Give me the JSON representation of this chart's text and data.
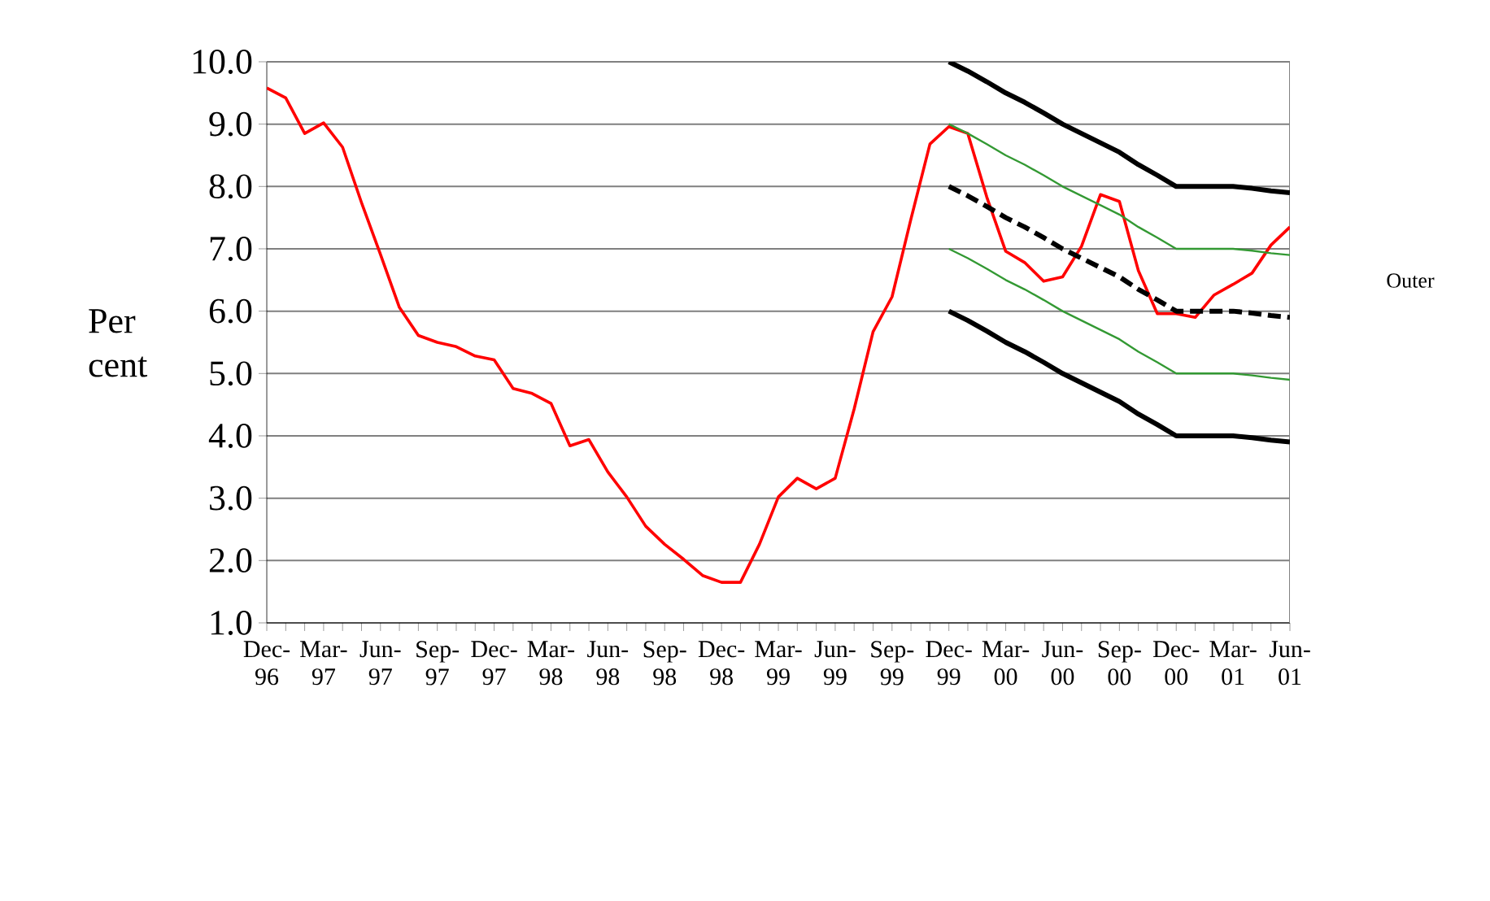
{
  "chart_data": {
    "type": "line",
    "ylabel": "Per cent",
    "categories": [
      "Dec-96",
      null,
      null,
      "Mar-97",
      null,
      null,
      "Jun-97",
      null,
      null,
      "Sep-97",
      null,
      null,
      "Dec-97",
      null,
      null,
      "Mar-98",
      null,
      null,
      "Jun-98",
      null,
      null,
      "Sep-98",
      null,
      null,
      "Dec-98",
      null,
      null,
      "Mar-99",
      null,
      null,
      "Jun-99",
      null,
      null,
      "Sep-99",
      null,
      null,
      "Dec-99",
      null,
      null,
      "Mar-00",
      null,
      null,
      "Jun-00",
      null,
      null,
      "Sep-00",
      null,
      null,
      "Dec-00",
      null,
      null,
      "Mar-01",
      null,
      null,
      "Jun-01"
    ],
    "series": [
      {
        "color": "#ff0000",
        "line_style": "solid",
        "values": [
          9.58,
          9.42,
          8.85,
          9.02,
          8.63,
          7.74,
          6.91,
          6.06,
          5.61,
          5.5,
          5.43,
          5.28,
          5.22,
          4.76,
          4.68,
          4.52,
          3.84,
          3.94,
          3.42,
          3.02,
          2.55,
          2.26,
          2.02,
          1.76,
          1.65,
          1.65,
          2.26,
          3.02,
          3.32,
          3.15,
          3.32,
          4.43,
          5.67,
          6.23,
          7.48,
          8.68,
          8.96,
          8.85,
          7.83,
          6.96,
          6.78,
          6.48,
          6.55,
          7.04,
          7.87,
          7.76,
          6.65,
          5.96,
          5.96,
          5.9,
          6.26,
          6.43,
          6.61,
          7.06,
          7.35
        ]
      },
      {
        "color": "#000000",
        "line_style": "solid",
        "values": [
          null,
          null,
          null,
          null,
          null,
          null,
          null,
          null,
          null,
          null,
          null,
          null,
          null,
          null,
          null,
          null,
          null,
          null,
          null,
          null,
          null,
          null,
          null,
          null,
          null,
          null,
          null,
          null,
          null,
          null,
          null,
          null,
          null,
          null,
          null,
          null,
          10.0,
          9.85,
          9.68,
          9.5,
          9.35,
          9.18,
          9.0,
          8.85,
          8.7,
          8.55,
          8.35,
          8.18,
          8.0,
          8.0,
          8.0,
          8.0,
          7.97,
          7.93,
          7.9
        ]
      },
      {
        "color": "#339933",
        "line_style": "solid",
        "values": [
          null,
          null,
          null,
          null,
          null,
          null,
          null,
          null,
          null,
          null,
          null,
          null,
          null,
          null,
          null,
          null,
          null,
          null,
          null,
          null,
          null,
          null,
          null,
          null,
          null,
          null,
          null,
          null,
          null,
          null,
          null,
          null,
          null,
          null,
          null,
          null,
          9.0,
          8.85,
          8.68,
          8.5,
          8.35,
          8.18,
          8.0,
          7.85,
          7.7,
          7.55,
          7.35,
          7.18,
          7.0,
          7.0,
          7.0,
          7.0,
          6.97,
          6.93,
          6.9
        ]
      },
      {
        "color": "#000000",
        "line_style": "dashed",
        "values": [
          null,
          null,
          null,
          null,
          null,
          null,
          null,
          null,
          null,
          null,
          null,
          null,
          null,
          null,
          null,
          null,
          null,
          null,
          null,
          null,
          null,
          null,
          null,
          null,
          null,
          null,
          null,
          null,
          null,
          null,
          null,
          null,
          null,
          null,
          null,
          null,
          8.0,
          7.85,
          7.68,
          7.5,
          7.35,
          7.18,
          7.0,
          6.85,
          6.7,
          6.55,
          6.35,
          6.18,
          6.0,
          6.0,
          6.0,
          6.0,
          5.97,
          5.93,
          5.9
        ]
      },
      {
        "color": "#339933",
        "line_style": "solid",
        "values": [
          null,
          null,
          null,
          null,
          null,
          null,
          null,
          null,
          null,
          null,
          null,
          null,
          null,
          null,
          null,
          null,
          null,
          null,
          null,
          null,
          null,
          null,
          null,
          null,
          null,
          null,
          null,
          null,
          null,
          null,
          null,
          null,
          null,
          null,
          null,
          null,
          7.0,
          6.85,
          6.68,
          6.5,
          6.35,
          6.18,
          6.0,
          5.85,
          5.7,
          5.55,
          5.35,
          5.18,
          5.0,
          5.0,
          5.0,
          5.0,
          4.97,
          4.93,
          4.9
        ]
      },
      {
        "color": "#000000",
        "line_style": "solid",
        "values": [
          null,
          null,
          null,
          null,
          null,
          null,
          null,
          null,
          null,
          null,
          null,
          null,
          null,
          null,
          null,
          null,
          null,
          null,
          null,
          null,
          null,
          null,
          null,
          null,
          null,
          null,
          null,
          null,
          null,
          null,
          null,
          null,
          null,
          null,
          null,
          null,
          6.0,
          5.85,
          5.68,
          5.5,
          5.35,
          5.18,
          5.0,
          4.85,
          4.7,
          4.55,
          4.35,
          4.18,
          4.0,
          4.0,
          4.0,
          4.0,
          3.97,
          3.93,
          3.9
        ]
      }
    ],
    "ylim": [
      1,
      10
    ],
    "yticks": [
      {
        "value": 1,
        "label": "1.0"
      },
      {
        "value": 2,
        "label": "2.0"
      },
      {
        "value": 3,
        "label": "3.0"
      },
      {
        "value": 4,
        "label": "4.0"
      },
      {
        "value": 5,
        "label": "5.0"
      },
      {
        "value": 6,
        "label": "6.0"
      },
      {
        "value": 7,
        "label": "7.0"
      },
      {
        "value": 8,
        "label": "8.0"
      },
      {
        "value": 9,
        "label": "9.0"
      },
      {
        "value": 10,
        "label": "10.0"
      }
    ],
    "grid": "y",
    "legend": false,
    "marker": "none",
    "annotations": [
      "Outer"
    ]
  }
}
